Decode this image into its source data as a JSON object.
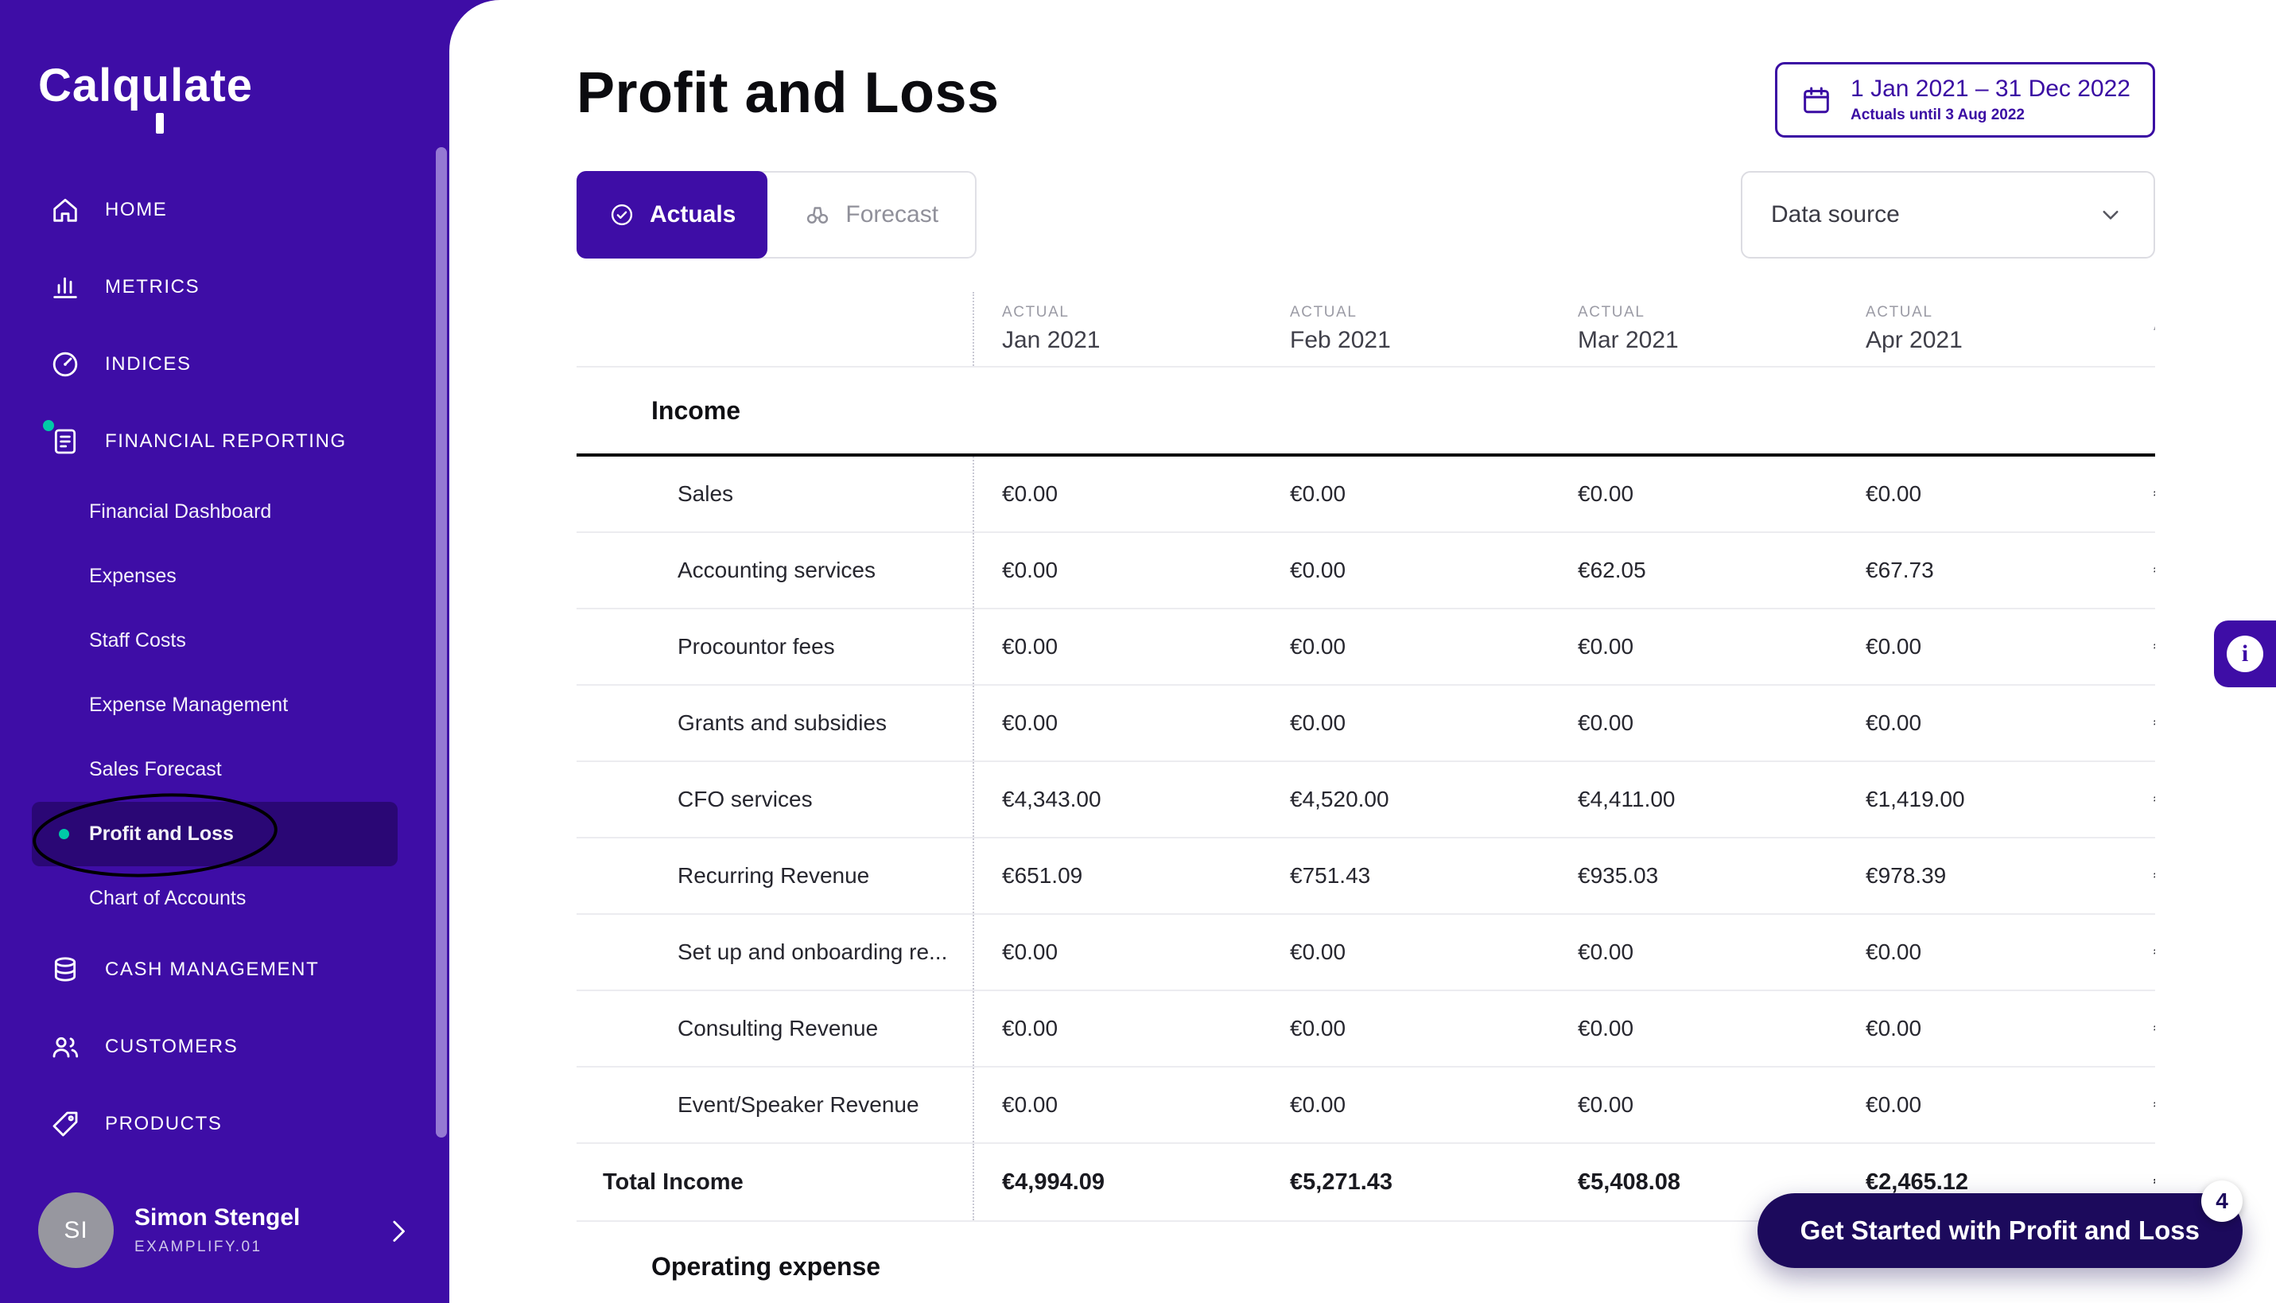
{
  "colors": {
    "brand_purple": "#3E0DA6",
    "active_item_purple": "#2A0775",
    "link_purple": "#3A0CA3",
    "accent_teal": "#00C9A7",
    "fab_dark_purple": "#1C0A5C"
  },
  "sidebar": {
    "logo": "Calqulate",
    "items": [
      {
        "label": "HOME",
        "icon": "home-icon"
      },
      {
        "label": "METRICS",
        "icon": "metrics-icon"
      },
      {
        "label": "INDICES",
        "icon": "indices-icon"
      },
      {
        "label": "FINANCIAL REPORTING",
        "icon": "financial-reporting-icon",
        "notification_dot": true,
        "children": [
          {
            "label": "Financial Dashboard"
          },
          {
            "label": "Expenses"
          },
          {
            "label": "Staff Costs"
          },
          {
            "label": "Expense Management"
          },
          {
            "label": "Sales Forecast"
          },
          {
            "label": "Profit and Loss",
            "active": true
          },
          {
            "label": "Chart of Accounts"
          }
        ]
      },
      {
        "label": "CASH MANAGEMENT",
        "icon": "cash-management-icon"
      },
      {
        "label": "CUSTOMERS",
        "icon": "customers-icon"
      },
      {
        "label": "PRODUCTS",
        "icon": "products-icon"
      }
    ],
    "user": {
      "initials": "SI",
      "name": "Simon Stengel",
      "org": "EXAMPLIFY.01"
    }
  },
  "header": {
    "title": "Profit and Loss",
    "date_range": {
      "primary": "1 Jan 2021 – 31 Dec 2022",
      "secondary": "Actuals until 3 Aug 2022"
    },
    "tabs": [
      {
        "label": "Actuals",
        "active": true,
        "icon": "check-circle-icon"
      },
      {
        "label": "Forecast",
        "active": false,
        "icon": "binoculars-icon"
      }
    ],
    "data_source_label": "Data source"
  },
  "table": {
    "column_tag": "ACTUAL",
    "columns": [
      "Jan 2021",
      "Feb 2021",
      "Mar 2021",
      "Apr 2021",
      ""
    ],
    "sections": {
      "income_label": "Income",
      "expense_label": "Operating expense"
    },
    "rows": [
      {
        "label": "Sales",
        "values": [
          "€0.00",
          "€0.00",
          "€0.00",
          "€0.00",
          "€"
        ]
      },
      {
        "label": "Accounting services",
        "values": [
          "€0.00",
          "€0.00",
          "€62.05",
          "€67.73",
          "€"
        ]
      },
      {
        "label": "Procountor fees",
        "values": [
          "€0.00",
          "€0.00",
          "€0.00",
          "€0.00",
          "€"
        ]
      },
      {
        "label": "Grants and subsidies",
        "values": [
          "€0.00",
          "€0.00",
          "€0.00",
          "€0.00",
          "€"
        ]
      },
      {
        "label": "CFO services",
        "values": [
          "€4,343.00",
          "€4,520.00",
          "€4,411.00",
          "€1,419.00",
          "€"
        ]
      },
      {
        "label": "Recurring Revenue",
        "values": [
          "€651.09",
          "€751.43",
          "€935.03",
          "€978.39",
          "€"
        ]
      },
      {
        "label": "Set up and onboarding re...",
        "values": [
          "€0.00",
          "€0.00",
          "€0.00",
          "€0.00",
          "€"
        ]
      },
      {
        "label": "Consulting Revenue",
        "values": [
          "€0.00",
          "€0.00",
          "€0.00",
          "€0.00",
          "€"
        ]
      },
      {
        "label": "Event/Speaker Revenue",
        "values": [
          "€0.00",
          "€0.00",
          "€0.00",
          "€0.00",
          "€"
        ]
      }
    ],
    "total_row": {
      "label": "Total Income",
      "values": [
        "€4,994.09",
        "€5,271.43",
        "€5,408.08",
        "€2,465.12",
        "€"
      ]
    }
  },
  "fab": {
    "label": "Get Started with Profit and Loss",
    "badge": "4"
  },
  "info_button": {
    "glyph": "i"
  }
}
